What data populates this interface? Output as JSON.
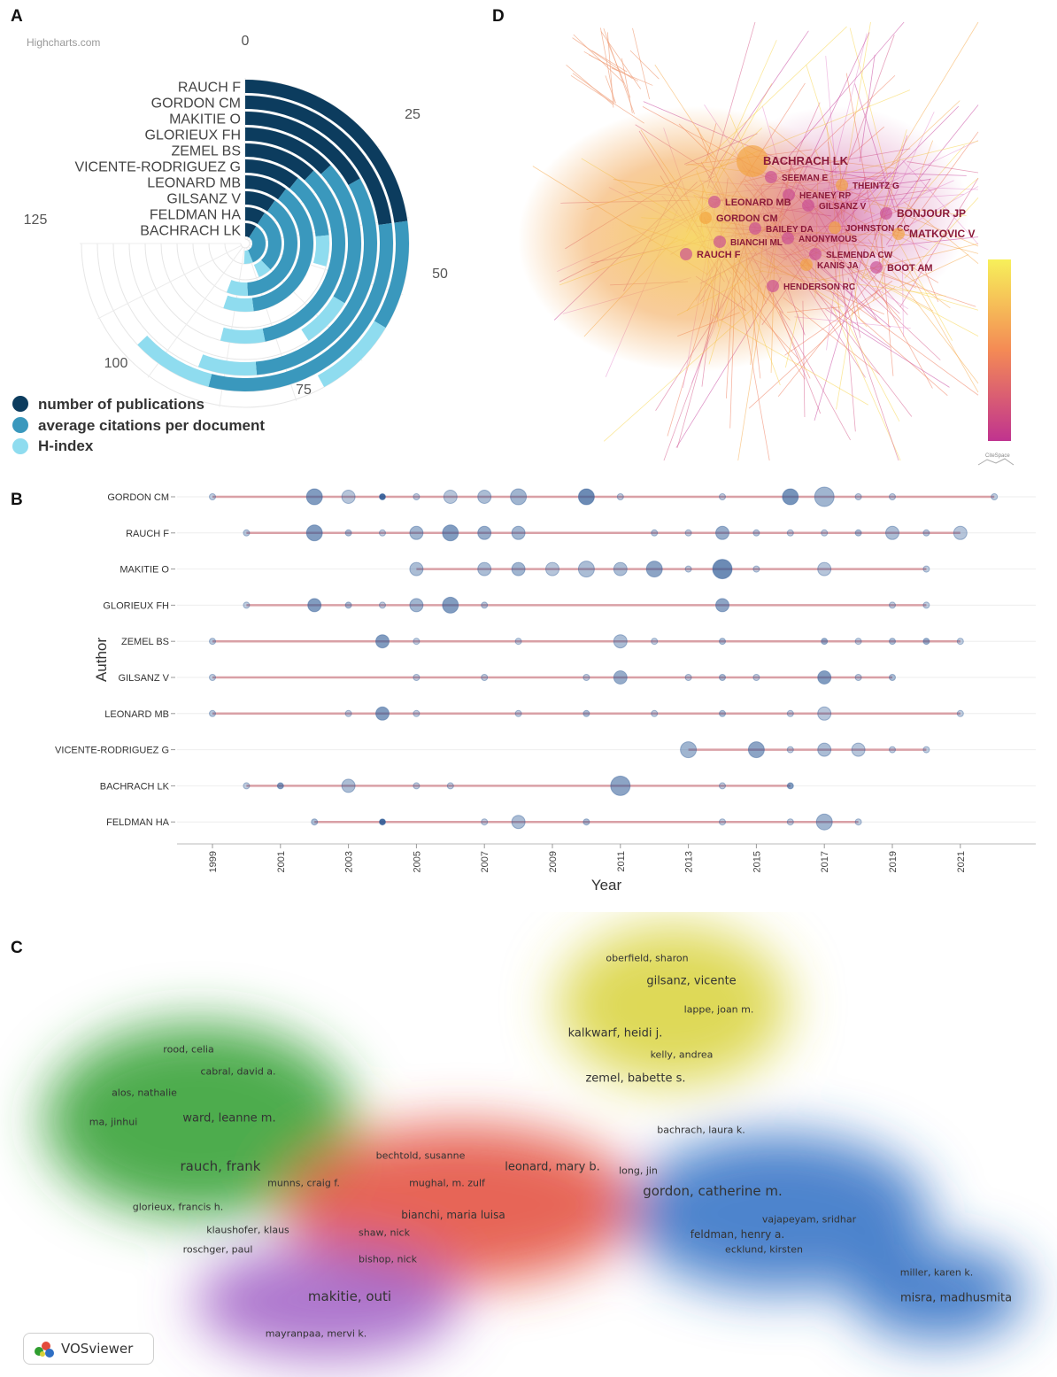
{
  "panel_labels": {
    "a": "A",
    "b": "B",
    "c": "C",
    "d": "D"
  },
  "colors": {
    "publications": "#0c3c5e",
    "citations": "#3a98bd",
    "hindex": "#8fdcef",
    "timeline_line": "#d9a0a6",
    "bubble": "#4f77a8"
  },
  "chart_data": [
    {
      "id": "A",
      "type": "bar",
      "subtype": "radial",
      "credit": "Highcharts.com",
      "categories": [
        "RAUCH F",
        "GORDON CM",
        "MAKITIE O",
        "GLORIEUX FH",
        "ZEMEL BS",
        "VICENTE-RODRIGUEZ G",
        "LEONARD MB",
        "GILSANZ V",
        "FELDMAN HA",
        "BACHRACH LK"
      ],
      "axis_ticks": [
        "0",
        "25",
        "50",
        "75",
        "100",
        "125"
      ],
      "ylim": [
        0,
        125
      ],
      "series": [
        {
          "name": "number of publications",
          "values": [
            38,
            38,
            28,
            22,
            20,
            18,
            17,
            16,
            15,
            15
          ]
        },
        {
          "name": "average citations per document",
          "values": [
            18,
            52,
            53,
            34,
            58,
            21,
            63,
            66,
            48,
            58
          ]
        },
        {
          "name": "H-index",
          "values": [
            14,
            15,
            12,
            12,
            12,
            10,
            12,
            11,
            10,
            12
          ]
        }
      ]
    },
    {
      "id": "B",
      "type": "scatter",
      "subtype": "bubble-timeline",
      "xlabel": "Year",
      "ylabel": "Author",
      "xlim": [
        1998,
        2023
      ],
      "xticks": [
        "1999",
        "2001",
        "2003",
        "2005",
        "2007",
        "2009",
        "2011",
        "2013",
        "2015",
        "2017",
        "2019",
        "2021"
      ],
      "authors": [
        {
          "name": "GORDON CM",
          "points": [
            [
              1999,
              1,
              0.3
            ],
            [
              2002,
              3,
              0.6
            ],
            [
              2003,
              2,
              0.35
            ],
            [
              2004,
              1,
              0.9
            ],
            [
              2005,
              1,
              0.3
            ],
            [
              2006,
              2,
              0.35
            ],
            [
              2007,
              2,
              0.4
            ],
            [
              2008,
              3,
              0.45
            ],
            [
              2010,
              3,
              0.7
            ],
            [
              2011,
              1,
              0.3
            ],
            [
              2014,
              1,
              0.3
            ],
            [
              2016,
              3,
              0.65
            ],
            [
              2017,
              4,
              0.45
            ],
            [
              2018,
              1,
              0.3
            ],
            [
              2019,
              1,
              0.3
            ],
            [
              2022,
              1,
              0.3
            ]
          ]
        },
        {
          "name": "RAUCH F",
          "points": [
            [
              2000,
              1,
              0.35
            ],
            [
              2002,
              3,
              0.6
            ],
            [
              2003,
              1,
              0.4
            ],
            [
              2004,
              1,
              0.3
            ],
            [
              2005,
              2,
              0.45
            ],
            [
              2006,
              3,
              0.6
            ],
            [
              2007,
              2,
              0.5
            ],
            [
              2008,
              2,
              0.45
            ],
            [
              2012,
              1,
              0.35
            ],
            [
              2013,
              1,
              0.3
            ],
            [
              2014,
              2,
              0.5
            ],
            [
              2015,
              1,
              0.35
            ],
            [
              2016,
              1,
              0.3
            ],
            [
              2017,
              1,
              0.3
            ],
            [
              2018,
              1,
              0.4
            ],
            [
              2019,
              2,
              0.4
            ],
            [
              2020,
              1,
              0.35
            ],
            [
              2021,
              2,
              0.35
            ]
          ]
        },
        {
          "name": "MAKITIE O",
          "points": [
            [
              2005,
              2,
              0.4
            ],
            [
              2007,
              2,
              0.4
            ],
            [
              2008,
              2,
              0.45
            ],
            [
              2009,
              2,
              0.35
            ],
            [
              2010,
              3,
              0.4
            ],
            [
              2011,
              2,
              0.4
            ],
            [
              2012,
              3,
              0.55
            ],
            [
              2013,
              1,
              0.3
            ],
            [
              2014,
              4,
              0.7
            ],
            [
              2015,
              1,
              0.3
            ],
            [
              2017,
              2,
              0.35
            ],
            [
              2020,
              1,
              0.3
            ]
          ]
        },
        {
          "name": "GLORIEUX FH",
          "points": [
            [
              2000,
              1,
              0.3
            ],
            [
              2002,
              2,
              0.6
            ],
            [
              2003,
              1,
              0.4
            ],
            [
              2004,
              1,
              0.3
            ],
            [
              2005,
              2,
              0.45
            ],
            [
              2006,
              3,
              0.6
            ],
            [
              2007,
              1,
              0.35
            ],
            [
              2014,
              2,
              0.55
            ],
            [
              2019,
              1,
              0.3
            ],
            [
              2020,
              1,
              0.3
            ]
          ]
        },
        {
          "name": "ZEMEL BS",
          "points": [
            [
              1999,
              1,
              0.35
            ],
            [
              2004,
              2,
              0.6
            ],
            [
              2005,
              1,
              0.3
            ],
            [
              2008,
              1,
              0.3
            ],
            [
              2011,
              2,
              0.4
            ],
            [
              2012,
              1,
              0.3
            ],
            [
              2014,
              1,
              0.4
            ],
            [
              2017,
              1,
              0.5
            ],
            [
              2018,
              1,
              0.3
            ],
            [
              2019,
              1,
              0.4
            ],
            [
              2020,
              1,
              0.5
            ],
            [
              2021,
              1,
              0.3
            ]
          ]
        },
        {
          "name": "GILSANZ V",
          "points": [
            [
              1999,
              1,
              0.3
            ],
            [
              2005,
              1,
              0.3
            ],
            [
              2007,
              1,
              0.3
            ],
            [
              2010,
              1,
              0.3
            ],
            [
              2011,
              2,
              0.5
            ],
            [
              2013,
              1,
              0.3
            ],
            [
              2014,
              1,
              0.4
            ],
            [
              2015,
              1,
              0.3
            ],
            [
              2017,
              2,
              0.6
            ],
            [
              2018,
              1,
              0.3
            ],
            [
              2019,
              1,
              0.4
            ]
          ]
        },
        {
          "name": "LEONARD MB",
          "points": [
            [
              1999,
              1,
              0.35
            ],
            [
              2003,
              1,
              0.3
            ],
            [
              2004,
              2,
              0.6
            ],
            [
              2005,
              1,
              0.3
            ],
            [
              2008,
              1,
              0.3
            ],
            [
              2010,
              1,
              0.4
            ],
            [
              2012,
              1,
              0.3
            ],
            [
              2014,
              1,
              0.4
            ],
            [
              2016,
              1,
              0.3
            ],
            [
              2017,
              2,
              0.35
            ],
            [
              2021,
              1,
              0.3
            ]
          ]
        },
        {
          "name": "VICENTE-RODRIGUEZ G",
          "points": [
            [
              2013,
              3,
              0.45
            ],
            [
              2015,
              3,
              0.55
            ],
            [
              2016,
              1,
              0.3
            ],
            [
              2017,
              2,
              0.4
            ],
            [
              2018,
              2,
              0.35
            ],
            [
              2019,
              1,
              0.3
            ],
            [
              2020,
              1,
              0.3
            ]
          ]
        },
        {
          "name": "BACHRACH LK",
          "points": [
            [
              2000,
              1,
              0.3
            ],
            [
              2001,
              1,
              0.6
            ],
            [
              2003,
              2,
              0.4
            ],
            [
              2005,
              1,
              0.3
            ],
            [
              2006,
              1,
              0.3
            ],
            [
              2011,
              4,
              0.55
            ],
            [
              2014,
              1,
              0.3
            ],
            [
              2016,
              1,
              0.6
            ]
          ]
        },
        {
          "name": "FELDMAN HA",
          "points": [
            [
              2002,
              1,
              0.4
            ],
            [
              2004,
              1,
              0.9
            ],
            [
              2007,
              1,
              0.3
            ],
            [
              2008,
              2,
              0.4
            ],
            [
              2010,
              1,
              0.4
            ],
            [
              2014,
              1,
              0.3
            ],
            [
              2016,
              1,
              0.3
            ],
            [
              2017,
              3,
              0.45
            ],
            [
              2018,
              1,
              0.3
            ]
          ]
        }
      ]
    },
    {
      "id": "C",
      "type": "density",
      "software": "VOSviewer",
      "clusters": [
        {
          "color": "#2f9e2f",
          "names": [
            "rood, celia",
            "cabral, david a.",
            "alos, nathalie",
            "ma, jinhui",
            "ward, leanne m.",
            "rauch, frank",
            "glorieux, francis h."
          ]
        },
        {
          "color": "#d8d23a",
          "names": [
            "oberfield, sharon",
            "gilsanz, vicente",
            "lappe, joan m.",
            "kalkwarf, heidi j.",
            "kelly, andrea",
            "zemel, babette s."
          ]
        },
        {
          "color": "#e34b3b",
          "names": [
            "bechtold, susanne",
            "munns, craig f.",
            "mughal, m. zulf",
            "leonard, mary b.",
            "long, jin",
            "bianchi, maria luisa",
            "shaw, nick",
            "bishop, nick"
          ]
        },
        {
          "color": "#2f6fc4",
          "names": [
            "bachrach, laura k.",
            "gordon, catherine m.",
            "vajapeyam, sridhar",
            "feldman, henry a.",
            "ecklund, kirsten",
            "miller, karen k.",
            "misra, madhusmita"
          ]
        },
        {
          "color": "#9a55c2",
          "names": [
            "klaushofer, klaus",
            "roschger, paul",
            "makitie, outi",
            "mayranpaa, mervi k."
          ]
        }
      ]
    },
    {
      "id": "D",
      "type": "network",
      "software": "CiteSpace",
      "nodes": [
        "BACHRACH LK",
        "SEEMAN E",
        "HEANEY RP",
        "THEINTZ G",
        "LEONARD MB",
        "GILSANZ V",
        "GORDON CM",
        "BONJOUR JP",
        "BAILEY DA",
        "JOHNSTON CC",
        "BIANCHI ML",
        "ANONYMOUS",
        "MATKOVIC V",
        "RAUCH F",
        "SLEMENDA CW",
        "KANIS JA",
        "BOOT AM",
        "HENDERSON RC"
      ]
    }
  ],
  "vos_labels": [
    {
      "text": "oberfield, sharon",
      "size": 11
    },
    {
      "text": "gilsanz, vicente",
      "size": 13
    },
    {
      "text": "lappe, joan m.",
      "size": 11
    },
    {
      "text": "kalkwarf, heidi j.",
      "size": 13
    },
    {
      "text": "kelly, andrea",
      "size": 11
    },
    {
      "text": "zemel, babette s.",
      "size": 13
    },
    {
      "text": "rood, celia",
      "size": 11
    },
    {
      "text": "cabral, david a.",
      "size": 11
    },
    {
      "text": "alos, nathalie",
      "size": 11
    },
    {
      "text": "ma, jinhui",
      "size": 11
    },
    {
      "text": "ward, leanne m.",
      "size": 13
    },
    {
      "text": "rauch, frank",
      "size": 15
    },
    {
      "text": "glorieux, francis h.",
      "size": 11
    },
    {
      "text": "bachrach, laura k.",
      "size": 11
    },
    {
      "text": "bechtold, susanne",
      "size": 11
    },
    {
      "text": "leonard, mary b.",
      "size": 13
    },
    {
      "text": "long, jin",
      "size": 11
    },
    {
      "text": "munns, craig f.",
      "size": 11
    },
    {
      "text": "mughal, m. zulf",
      "size": 11
    },
    {
      "text": "gordon, catherine m.",
      "size": 15
    },
    {
      "text": "bianchi, maria luisa",
      "size": 12
    },
    {
      "text": "vajapeyam, sridhar",
      "size": 11
    },
    {
      "text": "klaushofer, klaus",
      "size": 11
    },
    {
      "text": "shaw, nick",
      "size": 11
    },
    {
      "text": "feldman, henry a.",
      "size": 12
    },
    {
      "text": "roschger, paul",
      "size": 11
    },
    {
      "text": "ecklund, kirsten",
      "size": 11
    },
    {
      "text": "bishop, nick",
      "size": 11
    },
    {
      "text": "miller, karen k.",
      "size": 11
    },
    {
      "text": "makitie, outi",
      "size": 15
    },
    {
      "text": "misra, madhusmita",
      "size": 13
    },
    {
      "text": "mayranpaa, mervi k.",
      "size": 11
    }
  ],
  "vos_badge": "VOSviewer",
  "cite_badge": "CiteSpace"
}
